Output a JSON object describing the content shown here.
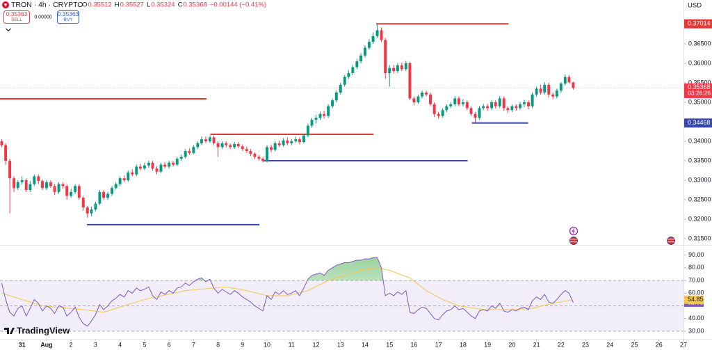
{
  "header": {
    "symbol": "TRON · 4h · CRYPTO",
    "ohlc": [
      {
        "label": "O",
        "value": "0.35512"
      },
      {
        "label": "H",
        "value": "0.35527"
      },
      {
        "label": "L",
        "value": "0.35324"
      },
      {
        "label": "C",
        "value": "0.35368"
      }
    ],
    "change": "−0.00144 (−0.41%)"
  },
  "trade": {
    "sell_price": "0.35363",
    "sell_label": "SELL",
    "spread": "0.00000",
    "buy_price": "0.35363",
    "buy_label": "BUY"
  },
  "currency": "USD",
  "logo": "TradingView",
  "chart_data": [
    {
      "type": "candlestick",
      "up_color": "#089981",
      "down_color": "#f23645",
      "x": [
        -0.83,
        -0.67,
        -0.5,
        -0.33,
        -0.17,
        0,
        0.17,
        0.33,
        0.5,
        0.67,
        0.83,
        1,
        1.17,
        1.33,
        1.5,
        1.67,
        1.83,
        2,
        2.17,
        2.33,
        2.5,
        2.67,
        2.83,
        3,
        3.17,
        3.33,
        3.5,
        3.67,
        3.83,
        4,
        4.17,
        4.33,
        4.5,
        4.67,
        4.83,
        5,
        5.17,
        5.33,
        5.5,
        5.67,
        5.83,
        6,
        6.17,
        6.33,
        6.5,
        6.67,
        6.83,
        7,
        7.17,
        7.33,
        7.5,
        7.67,
        7.83,
        8,
        8.17,
        8.33,
        8.5,
        8.67,
        8.83,
        9,
        9.17,
        9.33,
        9.5,
        9.67,
        9.83,
        10,
        10.17,
        10.33,
        10.5,
        10.67,
        10.83,
        11,
        11.17,
        11.33,
        11.5,
        11.67,
        11.83,
        12,
        12.17,
        12.33,
        12.5,
        12.67,
        12.83,
        13,
        13.17,
        13.33,
        13.5,
        13.67,
        13.83,
        14,
        14.17,
        14.33,
        14.5,
        14.67,
        14.83,
        15,
        15.17,
        15.33,
        15.5,
        15.67,
        15.83,
        16,
        16.17,
        16.33,
        16.5,
        16.67,
        16.83,
        17,
        17.17,
        17.33,
        17.5,
        17.67,
        17.83,
        18,
        18.17,
        18.33,
        18.5,
        18.67,
        18.83,
        19,
        19.17,
        19.33,
        19.5,
        19.67,
        19.83,
        20,
        20.17,
        20.33,
        20.5,
        20.67,
        20.83,
        21,
        21.17,
        21.33,
        21.5,
        21.67,
        21.83,
        22,
        22.17,
        22.33,
        22.5
      ],
      "open": [
        0.34,
        0.339,
        0.335,
        0.3305,
        0.328,
        0.3295,
        0.33,
        0.3275,
        0.329,
        0.331,
        0.3298,
        0.328,
        0.3295,
        0.3285,
        0.327,
        0.329,
        0.3285,
        0.326,
        0.327,
        0.3285,
        0.3255,
        0.323,
        0.3215,
        0.3225,
        0.324,
        0.327,
        0.3255,
        0.3265,
        0.328,
        0.329,
        0.3305,
        0.33,
        0.332,
        0.3315,
        0.3335,
        0.333,
        0.3338,
        0.3345,
        0.333,
        0.3322,
        0.334,
        0.3335,
        0.3345,
        0.334,
        0.3355,
        0.336,
        0.3375,
        0.337,
        0.3385,
        0.3395,
        0.3405,
        0.34,
        0.341,
        0.3395,
        0.3385,
        0.3395,
        0.339,
        0.3385,
        0.3393,
        0.3387,
        0.338,
        0.3375,
        0.3368,
        0.336,
        0.3355,
        0.335,
        0.3385,
        0.3378,
        0.3395,
        0.339,
        0.3402,
        0.3395,
        0.34,
        0.3405,
        0.3398,
        0.3415,
        0.344,
        0.3455,
        0.346,
        0.347,
        0.3465,
        0.349,
        0.3505,
        0.3525,
        0.3545,
        0.3565,
        0.3575,
        0.359,
        0.3605,
        0.362,
        0.364,
        0.3655,
        0.367,
        0.3685,
        0.366,
        0.3575,
        0.3588,
        0.358,
        0.3595,
        0.3585,
        0.36,
        0.351,
        0.35,
        0.3515,
        0.3525,
        0.352,
        0.3495,
        0.347,
        0.3465,
        0.348,
        0.349,
        0.3495,
        0.351,
        0.3495,
        0.35,
        0.3485,
        0.347,
        0.346,
        0.3485,
        0.349,
        0.3485,
        0.35,
        0.349,
        0.351,
        0.3485,
        0.348,
        0.349,
        0.3485,
        0.3495,
        0.35,
        0.349,
        0.352,
        0.3535,
        0.3525,
        0.3545,
        0.352,
        0.3515,
        0.353,
        0.3548,
        0.3565,
        0.35512
      ],
      "high": [
        0.3405,
        0.3395,
        0.3355,
        0.331,
        0.33,
        0.331,
        0.3305,
        0.3298,
        0.3315,
        0.3315,
        0.3302,
        0.33,
        0.33,
        0.329,
        0.3295,
        0.3295,
        0.329,
        0.3278,
        0.329,
        0.329,
        0.326,
        0.3235,
        0.3232,
        0.3245,
        0.3275,
        0.3275,
        0.327,
        0.3285,
        0.3295,
        0.331,
        0.3312,
        0.3325,
        0.3328,
        0.334,
        0.3342,
        0.3345,
        0.335,
        0.335,
        0.3336,
        0.3345,
        0.3346,
        0.335,
        0.335,
        0.336,
        0.3366,
        0.338,
        0.3382,
        0.339,
        0.34,
        0.3412,
        0.3412,
        0.3415,
        0.3415,
        0.34,
        0.34,
        0.34,
        0.3395,
        0.3398,
        0.3398,
        0.3392,
        0.3386,
        0.338,
        0.3372,
        0.3365,
        0.336,
        0.339,
        0.3392,
        0.34,
        0.3402,
        0.3408,
        0.341,
        0.3406,
        0.3412,
        0.341,
        0.342,
        0.3445,
        0.346,
        0.3468,
        0.3476,
        0.3478,
        0.3495,
        0.351,
        0.353,
        0.355,
        0.357,
        0.3582,
        0.3596,
        0.3612,
        0.3626,
        0.3646,
        0.3662,
        0.368,
        0.3701,
        0.3692,
        0.3665,
        0.3595,
        0.3596,
        0.36,
        0.3602,
        0.3606,
        0.3604,
        0.3515,
        0.352,
        0.353,
        0.353,
        0.3525,
        0.35,
        0.3475,
        0.3485,
        0.3495,
        0.35,
        0.3516,
        0.3515,
        0.3508,
        0.3505,
        0.349,
        0.3475,
        0.349,
        0.3496,
        0.3496,
        0.3506,
        0.3505,
        0.3516,
        0.3515,
        0.349,
        0.3495,
        0.3495,
        0.35,
        0.3506,
        0.3505,
        0.3525,
        0.354,
        0.3545,
        0.3552,
        0.355,
        0.3525,
        0.3535,
        0.3552,
        0.3572,
        0.357,
        0.35527
      ],
      "low": [
        0.3385,
        0.334,
        0.3215,
        0.327,
        0.3275,
        0.3288,
        0.327,
        0.327,
        0.3285,
        0.329,
        0.3275,
        0.3275,
        0.328,
        0.3262,
        0.3265,
        0.3278,
        0.325,
        0.3255,
        0.3265,
        0.325,
        0.3222,
        0.3204,
        0.3208,
        0.322,
        0.3236,
        0.325,
        0.325,
        0.326,
        0.3276,
        0.3285,
        0.3295,
        0.3296,
        0.331,
        0.331,
        0.3325,
        0.3326,
        0.3332,
        0.3325,
        0.3315,
        0.3318,
        0.333,
        0.333,
        0.3335,
        0.3336,
        0.335,
        0.3356,
        0.3365,
        0.3366,
        0.338,
        0.339,
        0.3395,
        0.3396,
        0.339,
        0.336,
        0.338,
        0.3384,
        0.338,
        0.338,
        0.3382,
        0.3375,
        0.337,
        0.3362,
        0.3355,
        0.335,
        0.3346,
        0.3346,
        0.3372,
        0.3374,
        0.3385,
        0.3386,
        0.339,
        0.339,
        0.3396,
        0.3392,
        0.3394,
        0.341,
        0.3435,
        0.3445,
        0.3455,
        0.3458,
        0.346,
        0.3485,
        0.35,
        0.352,
        0.354,
        0.356,
        0.357,
        0.3585,
        0.36,
        0.3615,
        0.3635,
        0.365,
        0.3665,
        0.3655,
        0.356,
        0.354,
        0.3574,
        0.3575,
        0.358,
        0.358,
        0.3505,
        0.3492,
        0.3496,
        0.351,
        0.3515,
        0.349,
        0.3462,
        0.3458,
        0.346,
        0.3475,
        0.3485,
        0.349,
        0.349,
        0.349,
        0.348,
        0.3465,
        0.3447,
        0.3455,
        0.348,
        0.3478,
        0.348,
        0.3484,
        0.3485,
        0.3478,
        0.3472,
        0.3475,
        0.3478,
        0.348,
        0.3488,
        0.3482,
        0.3485,
        0.3515,
        0.352,
        0.352,
        0.3512,
        0.3508,
        0.351,
        0.3525,
        0.3543,
        0.3548,
        0.35324
      ],
      "close": [
        0.339,
        0.335,
        0.3305,
        0.328,
        0.3295,
        0.33,
        0.3275,
        0.329,
        0.331,
        0.3298,
        0.328,
        0.3295,
        0.3285,
        0.327,
        0.329,
        0.3285,
        0.326,
        0.327,
        0.3285,
        0.3255,
        0.323,
        0.3215,
        0.3225,
        0.324,
        0.327,
        0.3255,
        0.3265,
        0.328,
        0.329,
        0.3305,
        0.33,
        0.332,
        0.3315,
        0.3335,
        0.333,
        0.3338,
        0.3345,
        0.333,
        0.3322,
        0.334,
        0.3335,
        0.3345,
        0.334,
        0.3355,
        0.336,
        0.3375,
        0.337,
        0.3385,
        0.3395,
        0.3405,
        0.34,
        0.341,
        0.3395,
        0.3385,
        0.3395,
        0.339,
        0.3385,
        0.3393,
        0.3387,
        0.338,
        0.3375,
        0.3368,
        0.336,
        0.3355,
        0.335,
        0.3385,
        0.3378,
        0.3395,
        0.339,
        0.3402,
        0.3395,
        0.34,
        0.3405,
        0.3398,
        0.3415,
        0.344,
        0.3455,
        0.346,
        0.347,
        0.3465,
        0.349,
        0.3505,
        0.3525,
        0.3545,
        0.3565,
        0.3575,
        0.359,
        0.3605,
        0.362,
        0.364,
        0.3655,
        0.367,
        0.3685,
        0.366,
        0.3575,
        0.3588,
        0.358,
        0.3595,
        0.3585,
        0.36,
        0.351,
        0.35,
        0.3515,
        0.3525,
        0.352,
        0.3495,
        0.347,
        0.3465,
        0.348,
        0.349,
        0.3495,
        0.351,
        0.3495,
        0.35,
        0.3485,
        0.347,
        0.346,
        0.3485,
        0.349,
        0.3485,
        0.35,
        0.349,
        0.351,
        0.3485,
        0.348,
        0.349,
        0.3485,
        0.3495,
        0.35,
        0.349,
        0.352,
        0.3535,
        0.3525,
        0.3545,
        0.352,
        0.3515,
        0.353,
        0.3548,
        0.3565,
        0.35512,
        0.35368
      ],
      "countdown": "03:26:26",
      "last_color": "#f23645",
      "levels": [
        {
          "price": 0.3509,
          "from": -0.9,
          "to": 7.53,
          "color": "#e53935",
          "axis_label": false
        },
        {
          "price": 0.3418,
          "from": 7.68,
          "to": 14.35,
          "color": "#e53935",
          "axis_label": false
        },
        {
          "price": 0.37014,
          "from": 14.46,
          "to": 19.86,
          "color": "#e53935",
          "axis_label": true
        },
        {
          "price": 0.3186,
          "from": 2.65,
          "to": 9.69,
          "color": "#3949ab",
          "axis_label": false
        },
        {
          "price": 0.335,
          "from": 9.84,
          "to": 18.19,
          "color": "#3949ab",
          "axis_label": false
        },
        {
          "price": 0.34468,
          "from": 18.36,
          "to": 20.66,
          "color": "#3949ab",
          "axis_label": true
        }
      ],
      "xlim": [
        -0.9,
        27
      ],
      "xticks": [
        {
          "value": 0,
          "label": "31"
        },
        {
          "value": 1,
          "label": "Aug"
        },
        2,
        3,
        4,
        5,
        6,
        7,
        8,
        9,
        10,
        11,
        12,
        13,
        14,
        15,
        16,
        17,
        18,
        19,
        20,
        21,
        22,
        23,
        24,
        25,
        26,
        27
      ],
      "ylim": [
        0.3134,
        0.37625
      ],
      "yticks": [
        {
          "value": 0.315,
          "label": "0.31500"
        },
        {
          "value": 0.32,
          "label": "0.32000"
        },
        {
          "value": 0.325,
          "label": "0.32500"
        },
        {
          "value": 0.33,
          "label": "0.33000"
        },
        {
          "value": 0.335,
          "label": "0.33500"
        },
        {
          "value": 0.34,
          "label": "0.34000"
        },
        {
          "value": 0.35,
          "label": "0.35000"
        },
        {
          "value": 0.355,
          "label": "0.35500"
        },
        {
          "value": 0.36,
          "label": "0.36000"
        },
        {
          "value": 0.365,
          "label": "0.36500"
        }
      ]
    },
    {
      "type": "line",
      "series": [
        {
          "color": "#7e57c2",
          "label_text_color": "#ffffff",
          "values": [
            68,
            55,
            45,
            42,
            48,
            50,
            42,
            48,
            55,
            52,
            46,
            50,
            48,
            44,
            50,
            49,
            42,
            45,
            49,
            41,
            36,
            34,
            38,
            43,
            51,
            47,
            50,
            54,
            56,
            59,
            57,
            62,
            60,
            64,
            62,
            63,
            65,
            58,
            55,
            61,
            59,
            62,
            60,
            64,
            65,
            68,
            66,
            69,
            71,
            72,
            69,
            71,
            64,
            60,
            63,
            61,
            59,
            62,
            60,
            57,
            55,
            53,
            50,
            48,
            46,
            58,
            55,
            61,
            59,
            62,
            59,
            60,
            62,
            58,
            64,
            71,
            74,
            75,
            76,
            74,
            78,
            80,
            82,
            83,
            84,
            84,
            85,
            86,
            86,
            87,
            87,
            88,
            88,
            80,
            58,
            60,
            58,
            61,
            59,
            62,
            45,
            44,
            47,
            49,
            48,
            44,
            40,
            39,
            43,
            46,
            47,
            50,
            47,
            48,
            45,
            42,
            40,
            46,
            47,
            46,
            50,
            48,
            52,
            46,
            45,
            47,
            46,
            48,
            49,
            47,
            54,
            57,
            55,
            59,
            53,
            52,
            55,
            59,
            62,
            60,
            52.55
          ]
        },
        {
          "color": "#f7c548",
          "label_text_color": "#131722",
          "values": [
            60,
            59,
            58,
            57,
            56,
            55,
            54,
            53,
            52,
            51,
            50,
            49.7,
            49.4,
            49.1,
            48.8,
            48.5,
            48.2,
            47.9,
            47.6,
            47.3,
            47,
            46.6,
            46.2,
            45.8,
            45.4,
            45,
            46,
            47,
            48,
            49,
            50,
            51,
            52,
            53,
            54,
            55,
            55.7,
            56.4,
            57.1,
            57.8,
            58.5,
            59.2,
            59.9,
            60.6,
            61.3,
            62,
            62.3,
            62.6,
            62.9,
            63.2,
            63.5,
            63.8,
            64.1,
            64.4,
            64.7,
            65,
            64.4,
            63.8,
            63.2,
            62.6,
            62,
            61.2,
            60.4,
            59.6,
            58.8,
            58,
            58,
            58,
            58,
            58,
            58,
            58.8,
            59.6,
            60.4,
            61.2,
            62,
            63.6,
            65.2,
            66.8,
            68.4,
            70,
            71,
            72,
            73,
            74,
            75,
            76,
            77,
            78,
            78.5,
            79,
            79.5,
            80,
            79.3,
            78.7,
            78,
            76.8,
            75.6,
            74.4,
            73.2,
            72,
            69.5,
            67,
            64.5,
            62,
            60.3,
            58.5,
            56.8,
            55,
            53.8,
            52.5,
            51.3,
            50,
            49.5,
            49,
            48.5,
            48,
            47.5,
            47,
            47,
            47,
            47,
            47,
            47,
            47,
            47,
            47.2,
            47.4,
            47.6,
            47.8,
            48,
            48.8,
            49.6,
            50.4,
            51.2,
            52,
            52.6,
            53.2,
            53.8,
            54.4,
            54.85
          ]
        }
      ],
      "bands": [
        70,
        50,
        30
      ],
      "band_fill": "#7e57c2",
      "overbought_fill": "#4caf50",
      "ylim": [
        24,
        98
      ],
      "yticks": [
        {
          "value": 30,
          "label": "30.00"
        },
        {
          "value": 40,
          "label": "40.00"
        },
        {
          "value": 60,
          "label": "60.00"
        },
        {
          "value": 70,
          "label": "70.00"
        },
        {
          "value": 80,
          "label": "80.00"
        },
        {
          "value": 90,
          "label": "90.00"
        }
      ]
    }
  ]
}
